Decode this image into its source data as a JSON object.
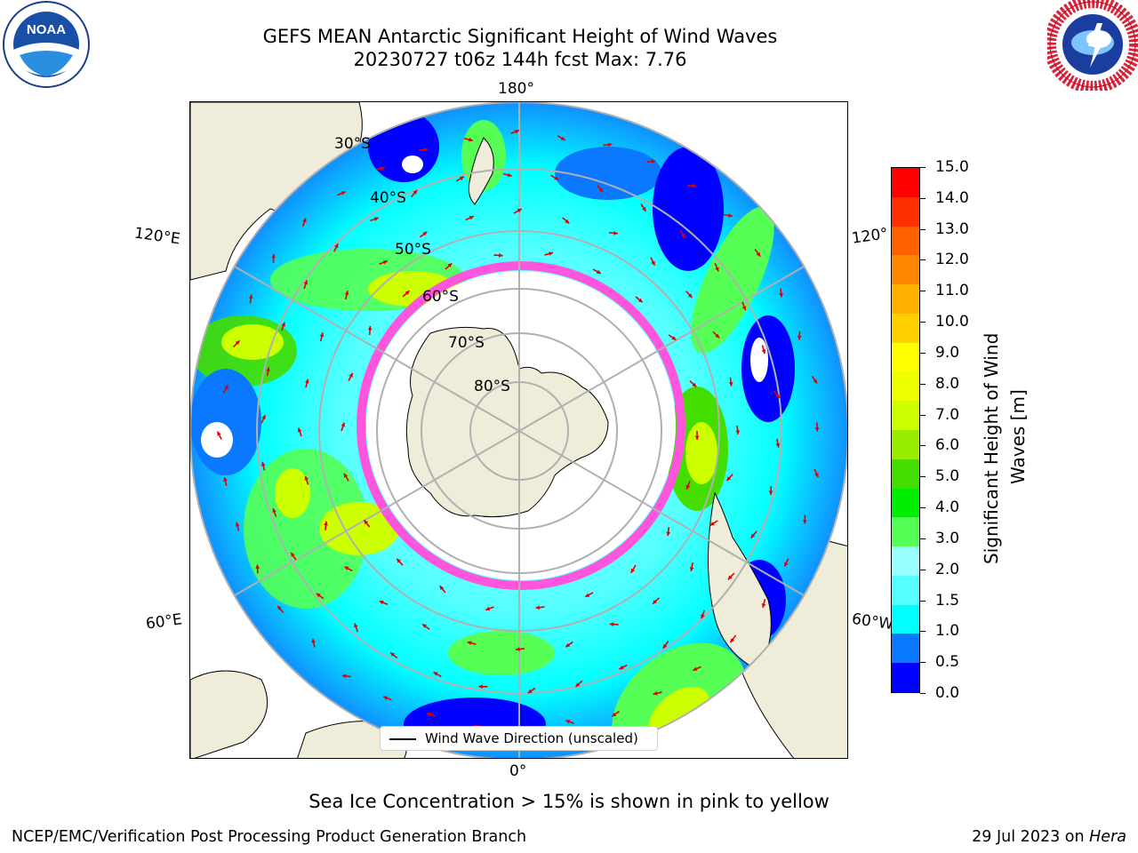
{
  "header": {
    "title_line1": "GEFS MEAN Antarctic Significant Height of Wind Waves",
    "title_line2": "20230727 t06z 144h fcst   Max: 7.76"
  },
  "logos": {
    "left": {
      "name": "noaa-logo",
      "text": "NOAA",
      "ring_text": "NATIONAL OCEANIC AND ATMOSPHERIC ADMINISTRATION · U.S. DEPARTMENT OF COMMERCE"
    },
    "right": {
      "name": "nws-logo",
      "ring_text": "NATIONAL WEATHER SERVICE"
    }
  },
  "map": {
    "longitude_labels": {
      "top": "180°",
      "bottom": "0°",
      "upper_left": "120°E",
      "upper_right": "120°",
      "lower_left": "60°E",
      "lower_right": "60°W"
    },
    "latitude_labels": [
      "30°S",
      "40°S",
      "50°S",
      "60°S",
      "70°S",
      "80°S"
    ],
    "legend_text": "Wind Wave Direction (unscaled)",
    "colors": {
      "land": "#efedda",
      "sea_ice": "#ff55dd",
      "arrow": "#e00000",
      "grid": "#b0b0b0"
    }
  },
  "colorbar": {
    "label": "Significant Height of Wind Waves [m]",
    "label_line1": "Significant Height of Wind",
    "label_line2": "Waves [m]",
    "ticks": [
      "15.0",
      "14.0",
      "13.0",
      "12.0",
      "11.0",
      "10.0",
      "9.0",
      "8.0",
      "7.0",
      "6.0",
      "5.0",
      "4.0",
      "3.0",
      "2.0",
      "1.5",
      "1.0",
      "0.5",
      "0.0"
    ],
    "bands_bottom_to_top": [
      "#0000ff",
      "#0a78ff",
      "#00ffff",
      "#55ffff",
      "#99ffff",
      "#55ff55",
      "#00ee00",
      "#44dd00",
      "#99ee00",
      "#ccff00",
      "#eeff00",
      "#ffff00",
      "#ffd000",
      "#ffb000",
      "#ff8800",
      "#ff6000",
      "#ff3000",
      "#ff0000"
    ]
  },
  "caption": "Sea Ice Concentration > 15% is shown in pink to yellow",
  "footer": {
    "left": "NCEP/EMC/Verification Post Processing Product Generation Branch",
    "right_date": "29 Jul 2023 on ",
    "right_machine": "Hera"
  }
}
